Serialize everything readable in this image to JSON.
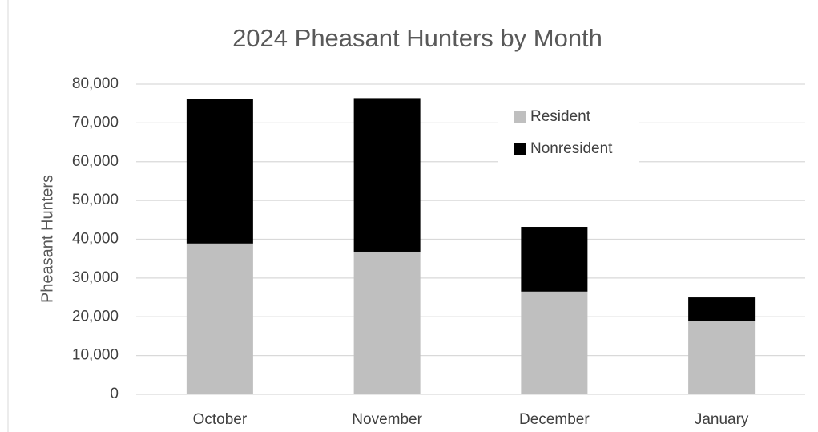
{
  "chart_data": {
    "type": "stacked_bar",
    "title": "2024 Pheasant Hunters by Month",
    "y_label": "Pheasant Hunters",
    "categories": [
      "October",
      "November",
      "December",
      "January"
    ],
    "series": [
      {
        "name": "Resident",
        "color": "#bfbfbf",
        "values": [
          38900,
          36800,
          26500,
          18900
        ]
      },
      {
        "name": "Nonresident",
        "color": "#000000",
        "values": [
          37200,
          39600,
          16700,
          6100
        ]
      }
    ],
    "ylim": [
      0,
      80000
    ],
    "yticks": [
      0,
      {
        "value": 10000,
        "label": "10,000"
      },
      {
        "value": 20000,
        "label": "20,000"
      },
      {
        "value": 30000,
        "label": "30,000"
      },
      {
        "value": 40000,
        "label": "40,000"
      },
      {
        "value": 50000,
        "label": "50,000"
      },
      {
        "value": 60000,
        "label": "60,000"
      },
      {
        "value": 70000,
        "label": "70,000"
      },
      {
        "value": 80000,
        "label": "80,000"
      }
    ],
    "grid": true,
    "legend": "top-right"
  }
}
